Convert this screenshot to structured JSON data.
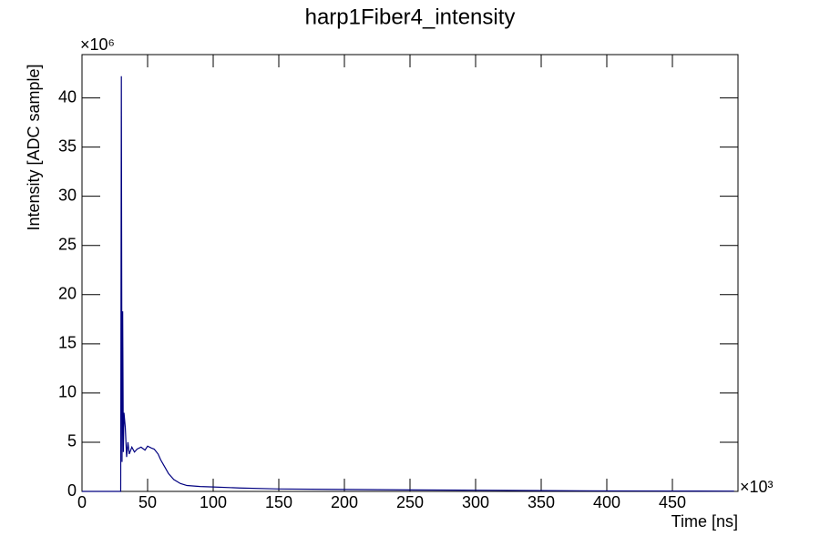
{
  "chart_data": {
    "type": "line",
    "title": "harp1Fiber4_intensity",
    "x_label": "Time [ns]",
    "y_label": "Intensity [ADC sample]",
    "x_multiplier": "×10³",
    "y_multiplier": "×10⁶",
    "x": [
      0,
      29.5,
      30,
      30.5,
      31,
      31.5,
      32,
      33,
      34,
      35,
      36,
      38,
      40,
      42,
      45,
      48,
      50,
      53,
      55,
      58,
      60,
      63,
      66,
      70,
      75,
      80,
      90,
      100,
      120,
      150,
      200,
      250,
      300,
      350,
      400,
      450,
      497
    ],
    "series": [
      {
        "name": "intensity",
        "color": "#000080",
        "values": [
          0,
          0,
          42.2,
          3,
          18.3,
          4,
          8,
          6.5,
          3.5,
          5,
          3.8,
          4.5,
          4,
          4.3,
          4.5,
          4.2,
          4.6,
          4.4,
          4.3,
          3.8,
          3.2,
          2.5,
          1.8,
          1.2,
          0.8,
          0.6,
          0.5,
          0.45,
          0.35,
          0.25,
          0.2,
          0.15,
          0.12,
          0.08,
          0.05,
          0.04,
          0.03
        ]
      }
    ],
    "xlim": [
      0,
      500
    ],
    "ylim": [
      0,
      44.4
    ],
    "xticks": [
      0,
      50,
      100,
      150,
      200,
      250,
      300,
      350,
      400,
      450
    ],
    "yticks": [
      0,
      5,
      10,
      15,
      20,
      25,
      30,
      35,
      40
    ]
  }
}
